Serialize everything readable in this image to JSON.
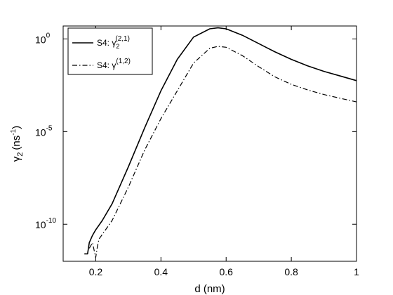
{
  "chart_data": {
    "type": "line",
    "xlabel": "d (nm)",
    "ylabel": "γ",
    "ylabel_sub": "2",
    "ylabel_unit": "(ns",
    "ylabel_unit_sup": "-1",
    "ylabel_unit_close": ")",
    "xlim": [
      0.1,
      1.0
    ],
    "ylim_log10": [
      -12,
      0.7
    ],
    "yscale": "log",
    "x_ticks": [
      {
        "value": 0.2,
        "label": "0.2"
      },
      {
        "value": 0.4,
        "label": "0.4"
      },
      {
        "value": 0.6,
        "label": "0.6"
      },
      {
        "value": 0.8,
        "label": "0.8"
      },
      {
        "value": 1.0,
        "label": "1"
      }
    ],
    "y_ticks": [
      {
        "exp": 0,
        "base": "10",
        "sup": "0"
      },
      {
        "exp": -5,
        "base": "10",
        "sup": "-5"
      },
      {
        "exp": -10,
        "base": "10",
        "sup": "-10"
      }
    ],
    "legend": {
      "placement": "top-left",
      "entries": [
        {
          "prefix": "S4: γ",
          "sub": "2",
          "sup": "(2,1)",
          "style": "solid"
        },
        {
          "prefix": "S4: γ",
          "sub": "",
          "sup": "(1,2)",
          "style": "dashdot"
        }
      ]
    },
    "series": [
      {
        "style": "solid",
        "x": [
          0.165,
          0.175,
          0.18,
          0.185,
          0.19,
          0.2,
          0.22,
          0.25,
          0.3,
          0.35,
          0.4,
          0.45,
          0.5,
          0.55,
          0.575,
          0.6,
          0.65,
          0.7,
          0.75,
          0.8,
          0.85,
          0.9,
          0.95,
          1.0
        ],
        "log10_y": [
          -11.6,
          -11.6,
          -11.0,
          -10.8,
          -10.6,
          -10.3,
          -9.8,
          -8.9,
          -6.9,
          -4.8,
          -2.8,
          -1.1,
          0.1,
          0.55,
          0.6,
          0.55,
          0.2,
          -0.25,
          -0.7,
          -1.1,
          -1.45,
          -1.75,
          -2.0,
          -2.25
        ]
      },
      {
        "style": "dashdot",
        "x": [
          0.18,
          0.19,
          0.2,
          0.205,
          0.21,
          0.25,
          0.3,
          0.35,
          0.4,
          0.45,
          0.5,
          0.55,
          0.575,
          0.6,
          0.65,
          0.7,
          0.75,
          0.8,
          0.85,
          0.9,
          0.95,
          1.0
        ],
        "log10_y": [
          -11.3,
          -11.0,
          -11.8,
          -11.2,
          -10.8,
          -9.8,
          -8.0,
          -6.0,
          -4.3,
          -2.8,
          -1.3,
          -0.5,
          -0.4,
          -0.45,
          -0.9,
          -1.5,
          -2.05,
          -2.45,
          -2.75,
          -3.0,
          -3.2,
          -3.4
        ]
      }
    ]
  }
}
